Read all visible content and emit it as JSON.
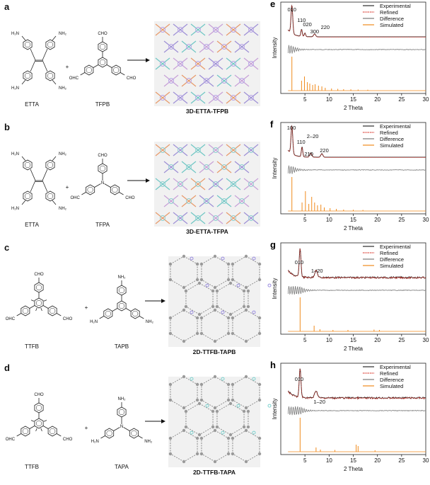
{
  "panels": [
    {
      "letter": "a",
      "reactant1": "ETTA",
      "reactant2": "TFPB",
      "product": "3D-ETTA-TFPB",
      "plus": "+",
      "r1_groups": [
        "H₂N",
        "NH₂",
        "H₂N",
        "NH₂"
      ],
      "r2_groups": [
        "CHO",
        "OHC",
        "CHO"
      ]
    },
    {
      "letter": "b",
      "reactant1": "ETTA",
      "reactant2": "TFPA",
      "product": "3D-ETTA-TFPA",
      "plus": "+",
      "r1_groups": [
        "H₂N",
        "NH₂",
        "H₂N",
        "NH₂"
      ],
      "r2_groups": [
        "CHO",
        "OHC",
        "CHO",
        "N"
      ]
    },
    {
      "letter": "c",
      "reactant1": "TTFB",
      "reactant2": "TAPB",
      "product": "2D-TTFB-TAPB",
      "plus": "+",
      "r1_groups": [
        "CHO",
        "OHC",
        "CHO"
      ],
      "r2_groups": [
        "NH₂",
        "H₂N",
        "NH₂"
      ]
    },
    {
      "letter": "d",
      "reactant1": "TTFB",
      "reactant2": "TAPA",
      "product": "2D-TTFB-TAPA",
      "plus": "+",
      "r1_groups": [
        "CHO",
        "OHC",
        "CHO"
      ],
      "r2_groups": [
        "NH₂",
        "H₂N",
        "NH₂",
        "N"
      ]
    }
  ],
  "plots": [
    {
      "letter": "e",
      "peaks": [
        "010",
        "110",
        "020",
        "300",
        "220"
      ],
      "legend": [
        "Experimental",
        "Refined",
        "Difference",
        "Simulated"
      ],
      "ylabel": "Intensity",
      "xlabel": "2 Theta",
      "xticks": [
        "5",
        "10",
        "15",
        "20",
        "25",
        "30"
      ]
    },
    {
      "letter": "f",
      "peaks": [
        "100",
        "110",
        "2–20",
        "210",
        "220"
      ],
      "legend": [
        "Experimental",
        "Refined",
        "Difference",
        "Simulated"
      ],
      "ylabel": "Intensity",
      "xlabel": "2 Theta",
      "xticks": [
        "5",
        "10",
        "15",
        "20",
        "25",
        "30"
      ]
    },
    {
      "letter": "g",
      "peaks": [
        "010",
        "1–20"
      ],
      "legend": [
        "Experimental",
        "Refined",
        "Difference",
        "Simulated"
      ],
      "ylabel": "Intensity",
      "xlabel": "2 Theta",
      "xticks": [
        "5",
        "10",
        "15",
        "20",
        "25",
        "30"
      ]
    },
    {
      "letter": "h",
      "peaks": [
        "010",
        "1–20"
      ],
      "legend": [
        "Experimental",
        "Refined",
        "Difference",
        "Simulated"
      ],
      "ylabel": "Intensity",
      "xlabel": "2 Theta",
      "xticks": [
        "5",
        "10",
        "15",
        "20",
        "25",
        "30"
      ]
    }
  ],
  "colors": {
    "experimental": "#2b2b2b",
    "refined": "#d9342b",
    "difference": "#7a7a7a",
    "simulated": "#f08a1c",
    "framework_bg": "#f1f1f1"
  }
}
